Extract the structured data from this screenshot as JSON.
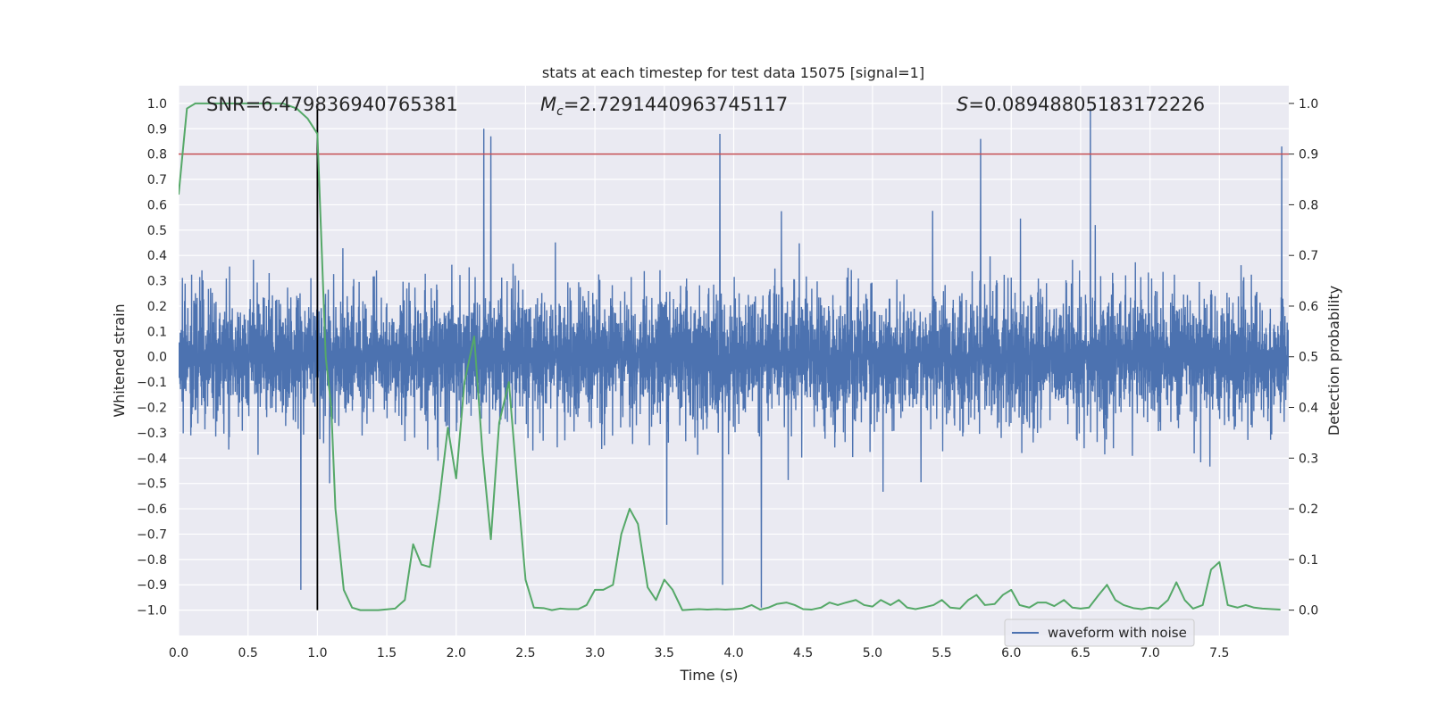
{
  "chart_data": {
    "type": "line",
    "title": "stats at each timestep for test data 15075 [signal=1]",
    "xlabel": "Time (s)",
    "ylabel_left": "Whitened strain",
    "ylabel_right": "Detection probability",
    "xlim": [
      0.0,
      8.0
    ],
    "ylim_left": [
      -1.1,
      1.07
    ],
    "ylim_right": [
      -0.05,
      1.035
    ],
    "x_ticks": [
      0.0,
      0.5,
      1.0,
      1.5,
      2.0,
      2.5,
      3.0,
      3.5,
      4.0,
      4.5,
      5.0,
      5.5,
      6.0,
      6.5,
      7.0,
      7.5
    ],
    "x_tick_labels": [
      "0.0",
      "0.5",
      "1.0",
      "1.5",
      "2.0",
      "2.5",
      "3.0",
      "3.5",
      "4.0",
      "4.5",
      "5.0",
      "5.5",
      "6.0",
      "6.5",
      "7.0",
      "7.5"
    ],
    "y_left_ticks": [
      -1.0,
      -0.9,
      -0.8,
      -0.7,
      -0.6,
      -0.5,
      -0.4,
      -0.3,
      -0.2,
      -0.1,
      0.0,
      0.1,
      0.2,
      0.3,
      0.4,
      0.5,
      0.6,
      0.7,
      0.8,
      0.9,
      1.0
    ],
    "y_left_tick_labels": [
      "−1.0",
      "−0.9",
      "−0.8",
      "−0.7",
      "−0.6",
      "−0.5",
      "−0.4",
      "−0.3",
      "−0.2",
      "−0.1",
      "0.0",
      "0.1",
      "0.2",
      "0.3",
      "0.4",
      "0.5",
      "0.6",
      "0.7",
      "0.8",
      "0.9",
      "1.0"
    ],
    "y_right_ticks": [
      0.0,
      0.1,
      0.2,
      0.3,
      0.4,
      0.5,
      0.6,
      0.7,
      0.8,
      0.9,
      1.0
    ],
    "y_right_tick_labels": [
      "0.0",
      "0.1",
      "0.2",
      "0.3",
      "0.4",
      "0.5",
      "0.6",
      "0.7",
      "0.8",
      "0.9",
      "1.0"
    ],
    "grid": true,
    "legend": {
      "placement": "lower-right",
      "entries": [
        "waveform with noise"
      ]
    },
    "annotations": {
      "snr": "SNR=6.479836940765381",
      "mc_symbol": "M",
      "mc_subscript": "c",
      "mc_value": "=2.7291440963745117",
      "s_symbol": "S",
      "s_value": "=0.08948805183172226"
    },
    "series": [
      {
        "name": "waveform with noise",
        "axis": "left",
        "color": "#4c72b0",
        "render": "dense_noise",
        "envelope_typical": 0.45,
        "envelope_max": 1.0,
        "sample_count": 4096,
        "visible_extremes": [
          {
            "x": 0.88,
            "y": -0.92
          },
          {
            "x": 1.0,
            "y": 0.93
          },
          {
            "x": 2.2,
            "y": 0.9
          },
          {
            "x": 2.25,
            "y": 0.87
          },
          {
            "x": 3.9,
            "y": 0.88
          },
          {
            "x": 3.92,
            "y": -0.9
          },
          {
            "x": 4.2,
            "y": -0.99
          },
          {
            "x": 5.78,
            "y": 0.86
          },
          {
            "x": 6.57,
            "y": 0.98
          },
          {
            "x": 7.95,
            "y": 0.83
          }
        ]
      },
      {
        "name": "",
        "axis": "right",
        "color": "#55a868",
        "x": [
          0.0,
          0.06,
          0.12,
          0.18,
          0.25,
          0.5,
          0.75,
          0.85,
          0.93,
          1.0,
          1.06,
          1.1,
          1.13,
          1.19,
          1.25,
          1.31,
          1.44,
          1.56,
          1.63,
          1.69,
          1.75,
          1.81,
          1.88,
          1.94,
          2.0,
          2.06,
          2.13,
          2.19,
          2.25,
          2.31,
          2.38,
          2.44,
          2.5,
          2.56,
          2.63,
          2.69,
          2.75,
          2.81,
          2.88,
          2.94,
          3.0,
          3.06,
          3.13,
          3.19,
          3.25,
          3.31,
          3.38,
          3.44,
          3.5,
          3.56,
          3.63,
          3.69,
          3.75,
          3.81,
          3.88,
          3.94,
          4.0,
          4.06,
          4.13,
          4.19,
          4.25,
          4.31,
          4.38,
          4.44,
          4.5,
          4.56,
          4.63,
          4.69,
          4.75,
          4.81,
          4.88,
          4.94,
          5.0,
          5.06,
          5.13,
          5.19,
          5.25,
          5.31,
          5.38,
          5.44,
          5.5,
          5.56,
          5.63,
          5.69,
          5.75,
          5.81,
          5.88,
          5.94,
          6.0,
          6.06,
          6.13,
          6.19,
          6.25,
          6.31,
          6.38,
          6.44,
          6.5,
          6.56,
          6.63,
          6.69,
          6.75,
          6.81,
          6.88,
          6.94,
          7.0,
          7.06,
          7.13,
          7.19,
          7.25,
          7.31,
          7.38,
          7.44,
          7.5,
          7.56,
          7.63,
          7.69,
          7.75,
          7.81,
          7.88,
          7.94
        ],
        "values": [
          0.82,
          0.99,
          1.0,
          1.0,
          1.0,
          1.0,
          1.0,
          0.99,
          0.97,
          0.94,
          0.5,
          0.4,
          0.2,
          0.04,
          0.005,
          0.0,
          0.0,
          0.003,
          0.02,
          0.13,
          0.09,
          0.085,
          0.22,
          0.36,
          0.26,
          0.45,
          0.54,
          0.31,
          0.14,
          0.37,
          0.45,
          0.25,
          0.06,
          0.005,
          0.004,
          0.0,
          0.003,
          0.002,
          0.002,
          0.01,
          0.04,
          0.04,
          0.05,
          0.15,
          0.2,
          0.17,
          0.045,
          0.02,
          0.06,
          0.04,
          0.0,
          0.001,
          0.002,
          0.001,
          0.002,
          0.001,
          0.002,
          0.003,
          0.01,
          0.001,
          0.005,
          0.012,
          0.015,
          0.01,
          0.002,
          0.001,
          0.005,
          0.015,
          0.01,
          0.015,
          0.02,
          0.01,
          0.007,
          0.02,
          0.01,
          0.02,
          0.005,
          0.002,
          0.006,
          0.01,
          0.02,
          0.005,
          0.003,
          0.02,
          0.03,
          0.01,
          0.012,
          0.03,
          0.04,
          0.01,
          0.005,
          0.015,
          0.015,
          0.008,
          0.02,
          0.005,
          0.003,
          0.005,
          0.03,
          0.05,
          0.02,
          0.01,
          0.004,
          0.002,
          0.005,
          0.003,
          0.02,
          0.055,
          0.02,
          0.003,
          0.01,
          0.08,
          0.095,
          0.01,
          0.005,
          0.01,
          0.005,
          0.003,
          0.002,
          0.001
        ]
      }
    ],
    "reference_lines": [
      {
        "orientation": "horizontal",
        "axis": "right",
        "value": 0.9,
        "color": "#c44e52"
      },
      {
        "orientation": "vertical",
        "x": 1.0,
        "y_from": -1.0,
        "y_to": 1.0,
        "color": "#000000"
      }
    ]
  }
}
